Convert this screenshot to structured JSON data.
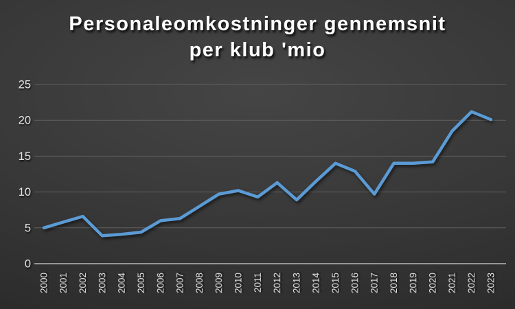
{
  "title": {
    "line1": "Personaleomkostninger gennemsnit",
    "line2": "per klub 'mio"
  },
  "chart_data": {
    "type": "line",
    "title": "Personaleomkostninger gennemsnit per klub 'mio",
    "title_lines": [
      "Personaleomkostninger gennemsnit",
      "per klub 'mio"
    ],
    "categories": [
      "2000",
      "2001",
      "2002",
      "2003",
      "2004",
      "2005",
      "2006",
      "2007",
      "2008",
      "2009",
      "2010",
      "2011",
      "2012",
      "2013",
      "2014",
      "2015",
      "2016",
      "2017",
      "2018",
      "2019",
      "2020",
      "2021",
      "2022",
      "2023"
    ],
    "series": [
      {
        "name": "Personaleomkostninger gennemsnit per klub 'mio",
        "values": [
          5.0,
          5.8,
          6.6,
          3.9,
          4.1,
          4.4,
          6.0,
          6.3,
          8.0,
          9.7,
          10.2,
          9.3,
          11.3,
          8.9,
          11.5,
          14.0,
          12.9,
          9.7,
          14.0,
          14.0,
          14.2,
          18.5,
          21.2,
          20.1
        ]
      }
    ],
    "xlabel": "",
    "ylabel": "",
    "ylim": [
      0,
      25
    ],
    "yticks": [
      0,
      5,
      10,
      15,
      20,
      25
    ],
    "grid": true,
    "legend": "none",
    "x_tick_rotation": -90,
    "colors": {
      "line": "#5b9bd5",
      "gridline": "#606060",
      "axis_line": "#b7b7b7",
      "tick_label": "#e6e6e6",
      "title": "#ffffff",
      "background": "#383838"
    }
  }
}
